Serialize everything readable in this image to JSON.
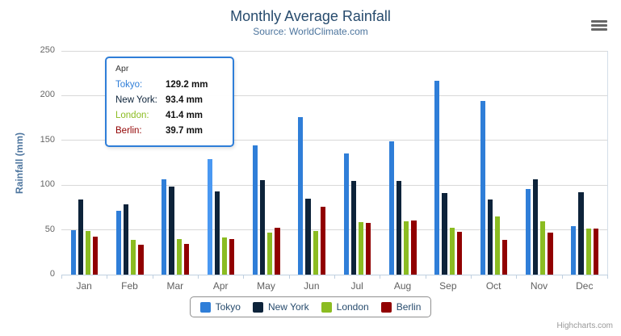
{
  "chart_data": {
    "type": "bar",
    "title": "Monthly Average Rainfall",
    "subtitle": "Source: WorldClimate.com",
    "categories": [
      "Jan",
      "Feb",
      "Mar",
      "Apr",
      "May",
      "Jun",
      "Jul",
      "Aug",
      "Sep",
      "Oct",
      "Nov",
      "Dec"
    ],
    "series": [
      {
        "name": "Tokyo",
        "color": "#2f7ed8",
        "values": [
          49.9,
          71.5,
          106.4,
          129.2,
          144.0,
          176.0,
          135.6,
          148.5,
          216.4,
          194.1,
          95.6,
          54.4
        ]
      },
      {
        "name": "New York",
        "color": "#0d233a",
        "values": [
          83.6,
          78.8,
          98.5,
          93.4,
          106.0,
          84.5,
          105.0,
          104.3,
          91.2,
          83.5,
          106.6,
          92.3
        ]
      },
      {
        "name": "London",
        "color": "#8bbc21",
        "values": [
          48.9,
          38.8,
          39.3,
          41.4,
          47.0,
          48.3,
          59.0,
          59.6,
          52.4,
          65.2,
          59.3,
          51.2
        ]
      },
      {
        "name": "Berlin",
        "color": "#910000",
        "values": [
          42.4,
          33.2,
          34.5,
          39.7,
          52.6,
          75.5,
          57.4,
          60.4,
          47.6,
          39.1,
          46.8,
          51.1
        ]
      }
    ],
    "xlabel": "",
    "ylabel": "Rainfall (mm)",
    "ylim": [
      0,
      250
    ],
    "yticks": [
      0,
      50,
      100,
      150,
      200,
      250
    ],
    "grid": true,
    "legend_position": "bottom"
  },
  "tooltip": {
    "header": "Apr",
    "rows": [
      {
        "name": "Tokyo:",
        "value": "129.2 mm",
        "color": "#2f7ed8"
      },
      {
        "name": "New York:",
        "value": "93.4 mm",
        "color": "#0d233a"
      },
      {
        "name": "London:",
        "value": "41.4 mm",
        "color": "#8bbc21"
      },
      {
        "name": "Berlin:",
        "value": "39.7 mm",
        "color": "#910000"
      }
    ],
    "hovered_category": "Apr",
    "hovered_series": "Tokyo",
    "hover_bar_color": "#4a98f2",
    "border_color": "#2f7ed8"
  },
  "credits": "Highcharts.com"
}
